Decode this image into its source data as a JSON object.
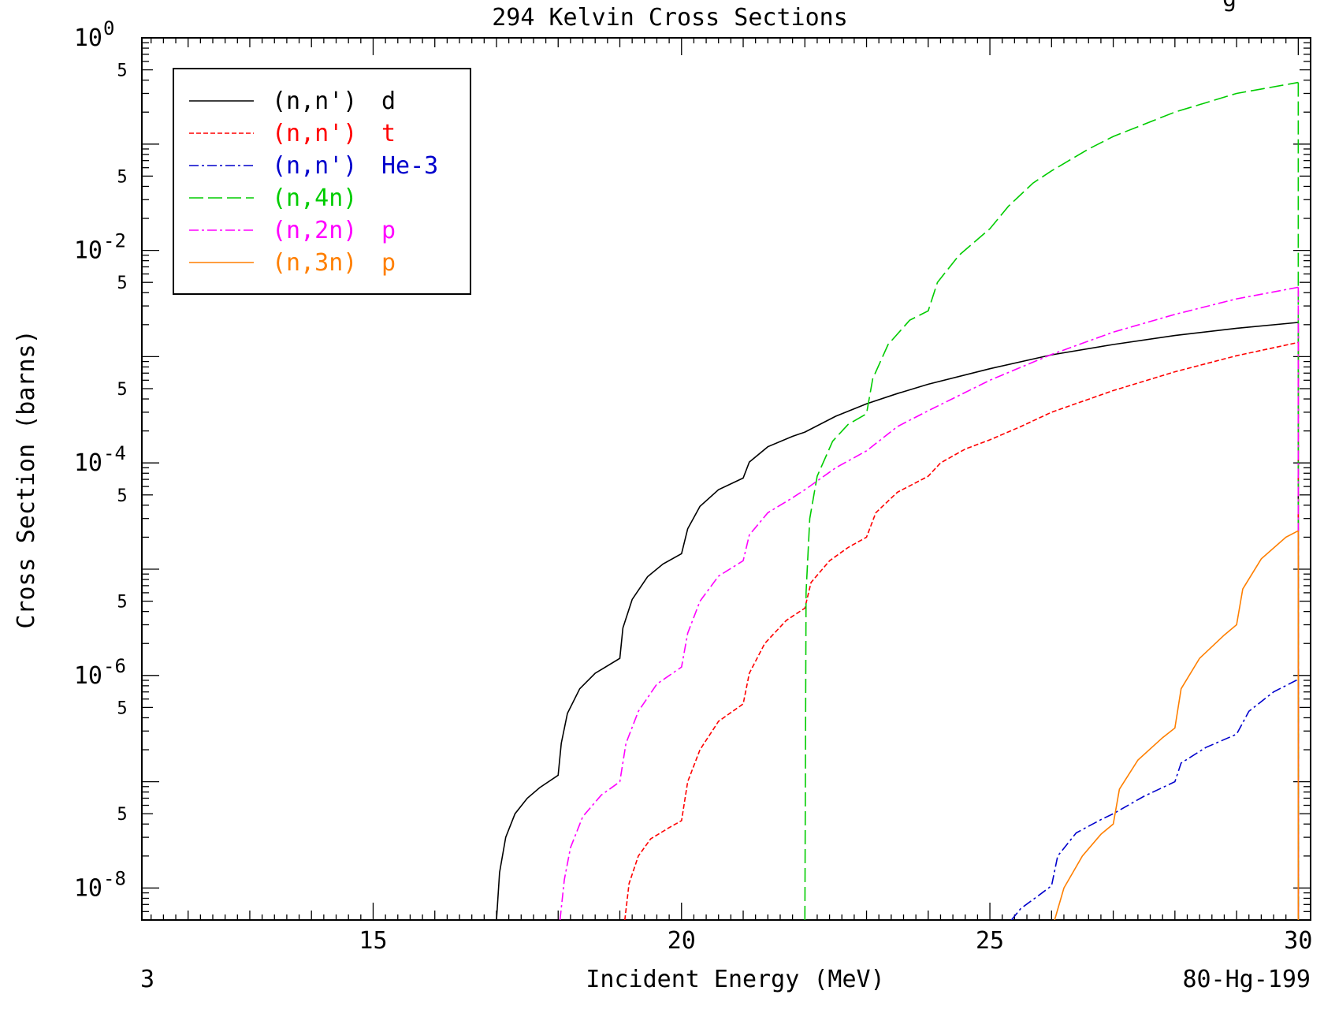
{
  "chart_data": {
    "type": "line",
    "title": "294 Kelvin Cross Sections",
    "title_suffix": "g",
    "xlabel": "Incident Energy (MeV)",
    "ylabel": "Cross Section (barns)",
    "corner_left": "3",
    "corner_right": "80-Hg-199",
    "x_scale": "linear",
    "y_scale": "log",
    "xlim": [
      11.25,
      30.2
    ],
    "ylim": [
      5e-09,
      1.0
    ],
    "grid": false,
    "legend_position": "top-left",
    "x_ticks": [
      15,
      20,
      25,
      30
    ],
    "x_tick_labels": [
      "15",
      "20",
      "25",
      "30"
    ],
    "y_major_ticks": [
      {
        "value": 1.0,
        "base": "10",
        "exp": "0"
      },
      {
        "value": 0.01,
        "base": "10",
        "exp": "-2"
      },
      {
        "value": 0.0001,
        "base": "10",
        "exp": "-4"
      },
      {
        "value": 1e-06,
        "base": "10",
        "exp": "-6"
      },
      {
        "value": 1e-08,
        "base": "10",
        "exp": "-8"
      }
    ],
    "y_five_ticks": [
      0.5,
      0.05,
      0.005,
      0.0005,
      5e-05,
      5e-06,
      5e-07,
      5e-08
    ],
    "y_five_label": "5",
    "series": [
      {
        "name": "(n,n') d",
        "label_parts": [
          "(n,n')",
          "d"
        ],
        "color": "#000000",
        "dash": "",
        "x": [
          17.0,
          17.05,
          17.15,
          17.3,
          17.5,
          17.7,
          18.0,
          18.05,
          18.15,
          18.35,
          18.6,
          19.0,
          19.05,
          19.2,
          19.45,
          19.7,
          20.0,
          20.1,
          20.3,
          20.6,
          21.0,
          21.1,
          21.4,
          21.8,
          22.0,
          22.5,
          23.0,
          23.5,
          24.0,
          25.0,
          26.0,
          27.0,
          28.0,
          29.0,
          30.0
        ],
        "y": [
          5e-09,
          1.4e-08,
          3e-08,
          5e-08,
          7e-08,
          8.8e-08,
          1.15e-07,
          2.3e-07,
          4.4e-07,
          7.5e-07,
          1.05e-06,
          1.45e-06,
          2.8e-06,
          5.2e-06,
          8.5e-06,
          1.12e-05,
          1.4e-05,
          2.4e-05,
          3.9e-05,
          5.6e-05,
          7.2e-05,
          0.000102,
          0.000142,
          0.000178,
          0.000195,
          0.000275,
          0.00036,
          0.00045,
          0.00055,
          0.00077,
          0.00104,
          0.0013,
          0.00158,
          0.00185,
          0.0021
        ]
      },
      {
        "name": "(n,n') t",
        "label_parts": [
          "(n,n')",
          "t"
        ],
        "color": "#ff0000",
        "dash": "6,3",
        "x": [
          19.08,
          19.15,
          19.3,
          19.5,
          19.8,
          20.0,
          20.1,
          20.3,
          20.6,
          21.0,
          21.1,
          21.35,
          21.7,
          22.0,
          22.1,
          22.4,
          22.7,
          23.0,
          23.15,
          23.5,
          24.0,
          24.2,
          24.6,
          25.0,
          25.5,
          26.0,
          27.0,
          28.0,
          29.0,
          30.0
        ],
        "y": [
          5e-09,
          1.1e-08,
          2e-08,
          2.9e-08,
          3.7e-08,
          4.3e-08,
          1e-07,
          2e-07,
          3.7e-07,
          5.4e-07,
          1.05e-06,
          2e-06,
          3.3e-06,
          4.3e-06,
          7.5e-06,
          1.2e-05,
          1.6e-05,
          2e-05,
          3.4e-05,
          5.3e-05,
          7.5e-05,
          0.0001,
          0.000135,
          0.000165,
          0.00022,
          0.0003,
          0.00048,
          0.00072,
          0.00102,
          0.00136
        ]
      },
      {
        "name": "(n,n') He-3",
        "label_parts": [
          "(n,n')",
          "He-3"
        ],
        "color": "#0000cc",
        "dash": "12,4,3,4",
        "x": [
          25.35,
          25.5,
          25.8,
          26.0,
          26.1,
          26.4,
          26.8,
          27.0,
          27.5,
          28.0,
          28.1,
          28.5,
          29.0,
          29.2,
          29.6,
          30.0
        ],
        "y": [
          5e-09,
          6.4e-09,
          8.6e-09,
          1.05e-08,
          2e-08,
          3.3e-08,
          4.4e-08,
          5e-08,
          7.3e-08,
          1e-07,
          1.5e-07,
          2.1e-07,
          2.8e-07,
          4.6e-07,
          7e-07,
          9.2e-07
        ]
      },
      {
        "name": "(n,4n)",
        "label_parts": [
          "(n,4n)",
          ""
        ],
        "color": "#00cc00",
        "dash": "18,6",
        "x": [
          22.0,
          22.02,
          22.08,
          22.2,
          22.45,
          22.7,
          23.0,
          23.1,
          23.35,
          23.7,
          24.0,
          24.15,
          24.5,
          25.0,
          25.3,
          25.7,
          26.0,
          26.6,
          27.0,
          28.0,
          29.0,
          30.0
        ],
        "y": [
          5e-09,
          6e-06,
          3e-05,
          7.5e-05,
          0.00016,
          0.00023,
          0.00029,
          0.00062,
          0.0013,
          0.0022,
          0.0027,
          0.005,
          0.009,
          0.016,
          0.026,
          0.043,
          0.056,
          0.09,
          0.118,
          0.2,
          0.3,
          0.38
        ]
      },
      {
        "name": "(n,2n) p",
        "label_parts": [
          "(n,2n)",
          "p"
        ],
        "color": "#ff00ff",
        "dash": "12,4,3,4",
        "x": [
          18.03,
          18.1,
          18.2,
          18.4,
          18.7,
          19.0,
          19.1,
          19.3,
          19.6,
          20.0,
          20.1,
          20.3,
          20.6,
          21.0,
          21.1,
          21.4,
          21.8,
          22.0,
          22.5,
          23.0,
          23.5,
          24.0,
          25.0,
          26.0,
          27.0,
          28.0,
          29.0,
          30.0
        ],
        "y": [
          5e-09,
          1.2e-08,
          2.4e-08,
          4.7e-08,
          7.5e-08,
          1e-07,
          2.3e-07,
          4.6e-07,
          8.3e-07,
          1.2e-06,
          2.5e-06,
          5e-06,
          8.6e-06,
          1.2e-05,
          2.1e-05,
          3.4e-05,
          4.7e-05,
          5.6e-05,
          9e-05,
          0.00013,
          0.00022,
          0.00031,
          0.0006,
          0.00105,
          0.0017,
          0.0025,
          0.0035,
          0.0045
        ]
      },
      {
        "name": "(n,3n) p",
        "label_parts": [
          "(n,3n)",
          "p"
        ],
        "color": "#ff7f00",
        "dash": "",
        "x": [
          26.05,
          26.2,
          26.5,
          26.8,
          27.0,
          27.1,
          27.4,
          27.8,
          28.0,
          28.1,
          28.4,
          28.8,
          29.0,
          29.1,
          29.4,
          29.8,
          30.0
        ],
        "y": [
          5e-09,
          1e-08,
          2e-08,
          3.2e-08,
          4e-08,
          8.5e-08,
          1.6e-07,
          2.6e-07,
          3.2e-07,
          7.5e-07,
          1.45e-06,
          2.4e-06,
          3e-06,
          6.5e-06,
          1.25e-05,
          2e-05,
          2.3e-05
        ]
      }
    ]
  }
}
